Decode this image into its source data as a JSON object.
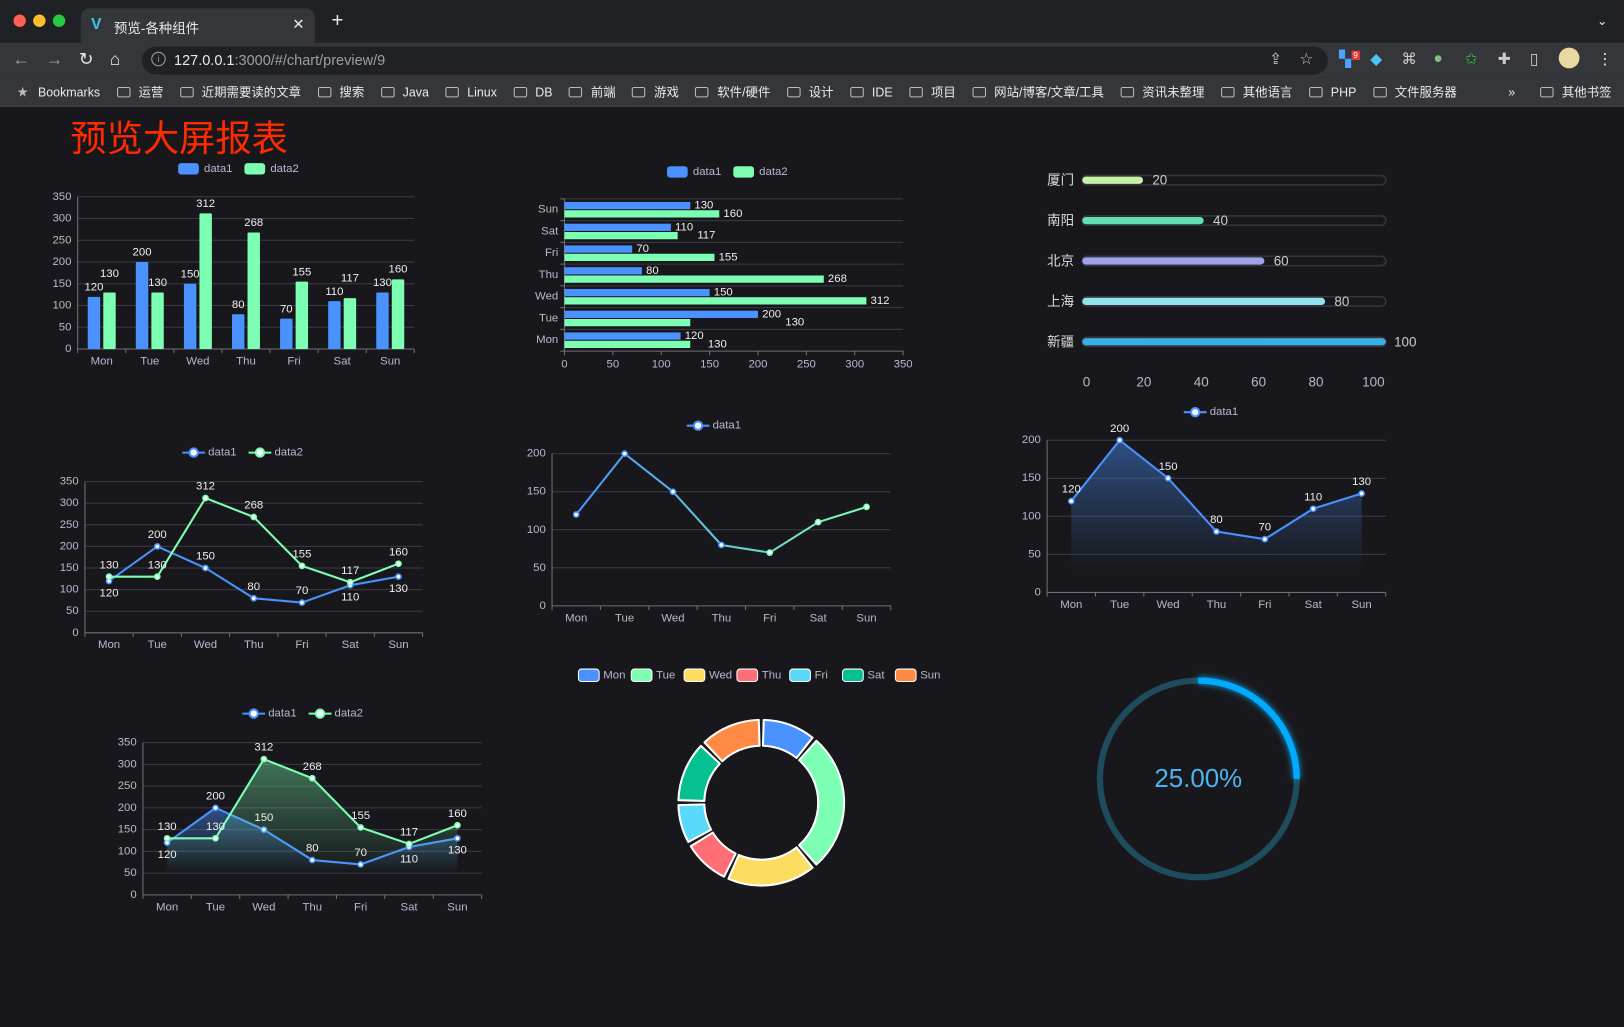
{
  "browser": {
    "tab_title": "预览-各种组件",
    "tab_logo": "V",
    "url_host": "127.0.0.1",
    "url_rest": ":3000/#/chart/preview/9",
    "extension_badge": "9",
    "bookmarks": [
      "Bookmarks",
      "运营",
      "近期需要读的文章",
      "搜索",
      "Java",
      "Linux",
      "DB",
      "前端",
      "游戏",
      "软件/硬件",
      "设计",
      "IDE",
      "项目",
      "网站/博客/文章/工具",
      "资讯未整理",
      "其他语言",
      "PHP",
      "文件服务器"
    ],
    "more_bookmarks": "»",
    "other_bookmarks": "其他书签",
    "window_controls_colors": [
      "#ff5f57",
      "#febc2e",
      "#28c840"
    ]
  },
  "page": {
    "title": "预览大屏报表",
    "title_color": "#ff2a00",
    "background": "#18181c"
  },
  "colors": {
    "data1": "#4992ff",
    "data2": "#7cffb2",
    "pie": [
      "#4992ff",
      "#7cffb2",
      "#fddd60",
      "#ff6e76",
      "#58d9f9",
      "#05c091",
      "#ff8a45"
    ],
    "progress": [
      "#c6f0a5",
      "#5fe0b0",
      "#9fa2e8",
      "#92e3ec",
      "#3aaee0"
    ],
    "gauge": "#00aaff"
  },
  "chart_data": [
    {
      "type": "bar",
      "categories": [
        "Mon",
        "Tue",
        "Wed",
        "Thu",
        "Fri",
        "Sat",
        "Sun"
      ],
      "series": [
        {
          "name": "data1",
          "values": [
            120,
            200,
            150,
            80,
            70,
            110,
            130
          ]
        },
        {
          "name": "data2",
          "values": [
            130,
            130,
            312,
            268,
            155,
            117,
            160
          ]
        }
      ],
      "ylim": [
        0,
        350
      ],
      "yticks": [
        "0",
        "50",
        "100",
        "150",
        "200",
        "250",
        "300",
        "350"
      ],
      "legend": "top-center",
      "grid": true
    },
    {
      "type": "bar",
      "orientation": "horizontal",
      "categories": [
        "Mon",
        "Tue",
        "Wed",
        "Thu",
        "Fri",
        "Sat",
        "Sun"
      ],
      "series": [
        {
          "name": "data1",
          "values": [
            120,
            200,
            150,
            80,
            70,
            110,
            130
          ]
        },
        {
          "name": "data2",
          "values": [
            130,
            130,
            312,
            268,
            155,
            117,
            160
          ]
        }
      ],
      "xlim": [
        0,
        350
      ],
      "xticks": [
        "0",
        "50",
        "100",
        "150",
        "200",
        "250",
        "300",
        "350"
      ],
      "legend": "top-center",
      "grid": true
    },
    {
      "type": "bar",
      "orientation": "horizontal",
      "style": "progress",
      "categories": [
        "厦门",
        "南阳",
        "北京",
        "上海",
        "新疆"
      ],
      "values": [
        20,
        40,
        60,
        80,
        100
      ],
      "xlim": [
        0,
        100
      ],
      "xticks": [
        "0",
        "20",
        "40",
        "60",
        "80",
        "100"
      ]
    },
    {
      "type": "line",
      "categories": [
        "Mon",
        "Tue",
        "Wed",
        "Thu",
        "Fri",
        "Sat",
        "Sun"
      ],
      "series": [
        {
          "name": "data1",
          "values": [
            120,
            200,
            150,
            80,
            70,
            110,
            130
          ]
        },
        {
          "name": "data2",
          "values": [
            130,
            130,
            312,
            268,
            155,
            117,
            160
          ]
        }
      ],
      "ylim": [
        0,
        350
      ],
      "yticks": [
        "0",
        "50",
        "100",
        "150",
        "200",
        "250",
        "300",
        "350"
      ],
      "legend": "top-center",
      "grid": true
    },
    {
      "type": "line",
      "categories": [
        "Mon",
        "Tue",
        "Wed",
        "Thu",
        "Fri",
        "Sat",
        "Sun"
      ],
      "series": [
        {
          "name": "data1",
          "values": [
            120,
            200,
            150,
            80,
            70,
            110,
            130
          ]
        }
      ],
      "ylim": [
        0,
        200
      ],
      "yticks": [
        "0",
        "50",
        "100",
        "150",
        "200"
      ],
      "legend": "top-center",
      "grid": true,
      "line_gradient": [
        "#4992ff",
        "#7cffb2"
      ]
    },
    {
      "type": "area",
      "categories": [
        "Mon",
        "Tue",
        "Wed",
        "Thu",
        "Fri",
        "Sat",
        "Sun"
      ],
      "series": [
        {
          "name": "data1",
          "values": [
            120,
            200,
            150,
            80,
            70,
            110,
            130
          ]
        }
      ],
      "ylim": [
        0,
        200
      ],
      "yticks": [
        "0",
        "50",
        "100",
        "150",
        "200"
      ],
      "legend": "top-center",
      "grid": true
    },
    {
      "type": "area",
      "categories": [
        "Mon",
        "Tue",
        "Wed",
        "Thu",
        "Fri",
        "Sat",
        "Sun"
      ],
      "series": [
        {
          "name": "data1",
          "values": [
            120,
            200,
            150,
            80,
            70,
            110,
            130
          ]
        },
        {
          "name": "data2",
          "values": [
            130,
            130,
            312,
            268,
            155,
            117,
            160
          ]
        }
      ],
      "ylim": [
        0,
        350
      ],
      "yticks": [
        "0",
        "50",
        "100",
        "150",
        "200",
        "250",
        "300",
        "350"
      ],
      "legend": "top-center",
      "grid": true
    },
    {
      "type": "pie",
      "style": "donut",
      "categories": [
        "Mon",
        "Tue",
        "Wed",
        "Thu",
        "Fri",
        "Sat",
        "Sun"
      ],
      "values": [
        40,
        100,
        65,
        35,
        30,
        45,
        45
      ],
      "legend": "top-center"
    },
    {
      "type": "gauge",
      "style": "ring-progress",
      "value": 25,
      "label": "25.00%"
    }
  ]
}
